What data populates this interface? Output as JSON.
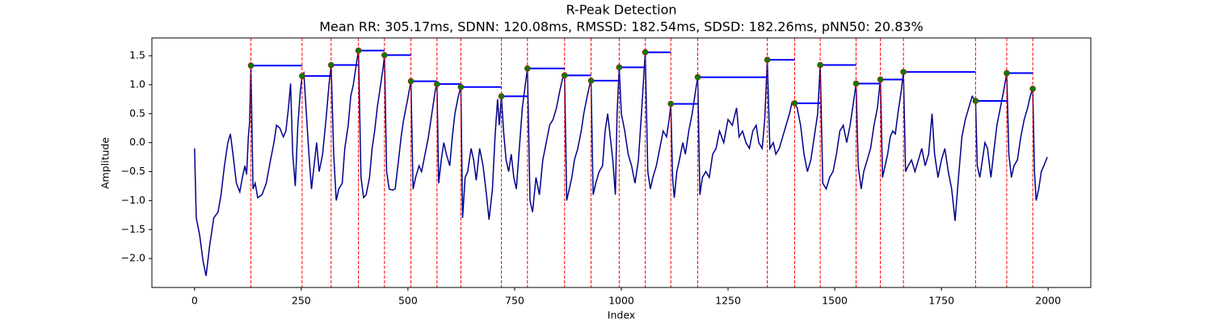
{
  "chart_data": {
    "type": "line",
    "title": "R-Peak Detection",
    "subtitle": "Mean RR: 305.17ms, SDNN: 120.08ms, RMSSD: 182.54ms, SDSD: 182.26ms, pNN50: 20.83%",
    "x_label": "Index",
    "y_label": "Amplitude",
    "xlim": [
      -99.95,
      2100
    ],
    "ylim": [
      -2.5,
      1.807
    ],
    "xticks": [
      0,
      250,
      500,
      750,
      1000,
      1250,
      1500,
      1750,
      2000
    ],
    "yticks": [
      {
        "value": -2,
        "label": "−2.0"
      },
      {
        "value": -1.5,
        "label": "−1.5"
      },
      {
        "value": -1,
        "label": "−1.0"
      },
      {
        "value": -0.5,
        "label": "−0.5"
      },
      {
        "value": 0,
        "label": "0.0"
      },
      0.5,
      {
        "value": 1,
        "label": "1.0"
      },
      1.5
    ],
    "series": [
      {
        "color": "#00008b",
        "x": [
          0,
          4,
          12,
          20,
          27,
          35,
          45,
          55,
          62,
          70,
          78,
          84,
          90,
          98,
          106,
          112,
          118,
          122,
          126,
          129,
          132,
          137,
          142,
          148,
          158,
          168,
          178,
          186,
          192,
          200,
          208,
          214,
          220,
          225,
          230,
          236,
          242,
          248,
          252,
          256,
          262,
          268,
          274,
          280,
          286,
          292,
          300,
          308,
          315,
          320,
          326,
          332,
          338,
          346,
          352,
          360,
          366,
          372,
          378,
          384,
          390,
          396,
          402,
          410,
          416,
          422,
          428,
          436,
          442,
          445,
          450,
          456,
          464,
          470,
          478,
          484,
          490,
          498,
          507,
          512,
          518,
          526,
          532,
          540,
          548,
          556,
          564,
          568,
          572,
          578,
          584,
          590,
          598,
          604,
          610,
          618,
          624,
          628,
          634,
          640,
          648,
          654,
          660,
          668,
          676,
          684,
          690,
          698,
          704,
          710,
          714,
          719,
          724,
          730,
          736,
          742,
          748,
          754,
          760,
          768,
          775,
          780,
          786,
          792,
          800,
          808,
          816,
          824,
          832,
          840,
          848,
          856,
          862,
          867,
          872,
          878,
          884,
          890,
          898,
          906,
          912,
          920,
          926,
          929,
          934,
          940,
          948,
          956,
          962,
          968,
          974,
          980,
          986,
          990,
          995,
          1000,
          1008,
          1016,
          1024,
          1032,
          1040,
          1048,
          1056,
          1062,
          1068,
          1074,
          1082,
          1090,
          1098,
          1106,
          1112,
          1116,
          1120,
          1124,
          1130,
          1136,
          1144,
          1150,
          1158,
          1166,
          1174,
          1179,
          1184,
          1190,
          1198,
          1206,
          1214,
          1222,
          1230,
          1240,
          1250,
          1260,
          1270,
          1276,
          1284,
          1292,
          1300,
          1308,
          1316,
          1322,
          1330,
          1336,
          1342,
          1348,
          1356,
          1362,
          1370,
          1378,
          1386,
          1394,
          1400,
          1406,
          1412,
          1420,
          1428,
          1436,
          1444,
          1452,
          1460,
          1466,
          1472,
          1480,
          1488,
          1496,
          1504,
          1512,
          1520,
          1528,
          1536,
          1544,
          1550,
          1555,
          1562,
          1568,
          1576,
          1584,
          1592,
          1600,
          1607,
          1612,
          1618,
          1624,
          1630,
          1636,
          1642,
          1648,
          1656,
          1661,
          1666,
          1672,
          1680,
          1688,
          1696,
          1704,
          1712,
          1720,
          1728,
          1734,
          1742,
          1750,
          1758,
          1766,
          1774,
          1782,
          1790,
          1798,
          1806,
          1814,
          1822,
          1830,
          1834,
          1840,
          1846,
          1852,
          1858,
          1866,
          1872,
          1880,
          1888,
          1896,
          1903,
          1908,
          1914,
          1920,
          1928,
          1936,
          1944,
          1952,
          1958,
          1964,
          1968,
          1972,
          1978,
          1984,
          1990,
          1998
        ],
        "values": [
          -0.1,
          -1.3,
          -1.6,
          -2.05,
          -2.3,
          -1.8,
          -1.3,
          -1.2,
          -0.9,
          -0.4,
          0.0,
          0.15,
          -0.2,
          -0.7,
          -0.85,
          -0.6,
          -0.4,
          -0.55,
          0.1,
          0.35,
          1.33,
          -0.8,
          -0.7,
          -0.95,
          -0.9,
          -0.7,
          -0.3,
          0.0,
          0.3,
          0.25,
          0.1,
          0.2,
          0.6,
          1.02,
          -0.2,
          -0.75,
          0.3,
          0.9,
          1.15,
          1.2,
          0.5,
          -0.2,
          -0.8,
          -0.4,
          0.0,
          -0.5,
          -0.2,
          0.4,
          1.0,
          1.34,
          -0.2,
          -1.0,
          -0.8,
          -0.7,
          -0.1,
          0.3,
          0.8,
          1.0,
          1.3,
          1.59,
          -0.6,
          -0.95,
          -0.9,
          -0.6,
          -0.1,
          0.2,
          0.6,
          1.0,
          1.3,
          1.51,
          -0.5,
          -0.8,
          -0.82,
          -0.8,
          -0.3,
          0.1,
          0.4,
          0.7,
          1.06,
          -0.8,
          -0.6,
          -0.4,
          -0.5,
          -0.2,
          0.1,
          0.5,
          0.9,
          1.01,
          -0.7,
          -0.3,
          0.0,
          -0.2,
          -0.4,
          0.1,
          0.5,
          0.8,
          0.96,
          -1.3,
          -0.6,
          -0.5,
          -0.1,
          -0.3,
          -0.65,
          -0.1,
          -0.4,
          -0.9,
          -1.33,
          -0.8,
          0.1,
          0.75,
          0.3,
          0.8,
          0.2,
          -0.3,
          -0.5,
          -0.2,
          -0.6,
          -0.8,
          -0.2,
          0.6,
          1.0,
          1.28,
          -1.0,
          -1.2,
          -0.6,
          -0.9,
          -0.3,
          0.0,
          0.3,
          0.4,
          0.6,
          0.9,
          1.1,
          1.16,
          -1.0,
          -0.8,
          -0.6,
          -0.3,
          -0.1,
          0.2,
          0.5,
          0.8,
          1.0,
          1.07,
          -0.9,
          -0.7,
          -0.5,
          -0.4,
          0.2,
          0.5,
          0.1,
          -0.3,
          -0.9,
          0.5,
          1.3,
          0.5,
          0.2,
          -0.2,
          -0.4,
          -0.7,
          -0.3,
          0.6,
          1.56,
          -0.5,
          -0.8,
          -0.6,
          -0.4,
          -0.1,
          0.2,
          0.1,
          0.4,
          0.67,
          -0.6,
          -0.95,
          -0.5,
          -0.3,
          0.0,
          -0.2,
          0.2,
          0.5,
          0.9,
          1.13,
          -0.9,
          -0.6,
          -0.5,
          -0.6,
          -0.2,
          -0.1,
          0.2,
          0.0,
          0.4,
          0.3,
          0.6,
          0.1,
          0.2,
          0.0,
          -0.1,
          0.2,
          0.3,
          0.0,
          -0.1,
          0.4,
          1.43,
          -0.1,
          0.0,
          -0.2,
          -0.1,
          0.1,
          0.3,
          0.5,
          0.7,
          0.68,
          0.6,
          0.3,
          -0.2,
          -0.5,
          -0.3,
          0.1,
          0.5,
          1.34,
          -0.7,
          -0.8,
          -0.6,
          -0.5,
          -0.2,
          0.2,
          0.3,
          0.0,
          0.3,
          0.7,
          1.02,
          -0.4,
          -0.8,
          -0.5,
          -0.3,
          -0.1,
          0.3,
          0.6,
          1.09,
          -0.6,
          -0.4,
          -0.2,
          0.1,
          0.2,
          0.15,
          0.5,
          0.9,
          1.22,
          -0.5,
          -0.4,
          -0.3,
          -0.5,
          -0.3,
          -0.1,
          -0.4,
          -0.2,
          0.5,
          -0.2,
          -0.6,
          -0.3,
          -0.1,
          -0.5,
          -0.8,
          -1.35,
          -0.6,
          0.1,
          0.4,
          0.6,
          0.8,
          0.72,
          -0.4,
          -0.6,
          -0.3,
          0.0,
          -0.1,
          -0.6,
          -0.2,
          0.3,
          0.6,
          0.9,
          1.2,
          -0.2,
          -0.6,
          -0.4,
          -0.3,
          0.1,
          0.4,
          0.6,
          0.8,
          0.93,
          -0.5,
          -1.0,
          -0.8,
          -0.5,
          -0.4,
          -0.25
        ]
      }
    ],
    "peaks": {
      "color": "green",
      "edge_color": "#cc0000",
      "x": [
        132,
        252,
        320,
        384,
        445,
        507,
        568,
        624,
        719,
        780,
        867,
        929,
        995,
        1056,
        1116,
        1179,
        1342,
        1406,
        1466,
        1550,
        1607,
        1661,
        1830,
        1903,
        1964
      ],
      "values": [
        1.33,
        1.15,
        1.34,
        1.59,
        1.51,
        1.06,
        1.01,
        0.96,
        0.8,
        1.28,
        1.16,
        1.07,
        1.3,
        1.56,
        0.67,
        1.13,
        1.43,
        0.68,
        1.34,
        1.02,
        1.09,
        1.22,
        0.72,
        1.2,
        0.93
      ]
    },
    "vline_color": "red",
    "interval_color": "blue"
  }
}
